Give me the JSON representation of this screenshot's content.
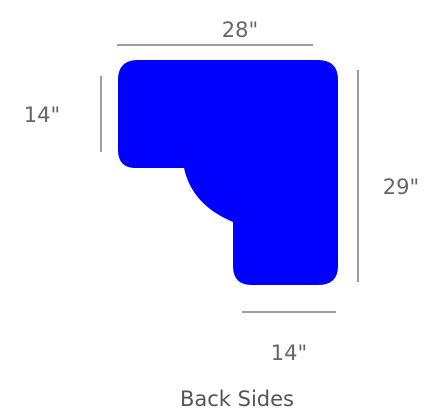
{
  "diagram": {
    "shape_color": "#0000ff",
    "line_color": "#7f7f7f",
    "text_color": "#666666",
    "dimensions": {
      "top_width": "28\"",
      "left_height": "14\"",
      "right_height": "29\"",
      "bottom_width": "14\""
    },
    "caption": "Back Sides"
  }
}
